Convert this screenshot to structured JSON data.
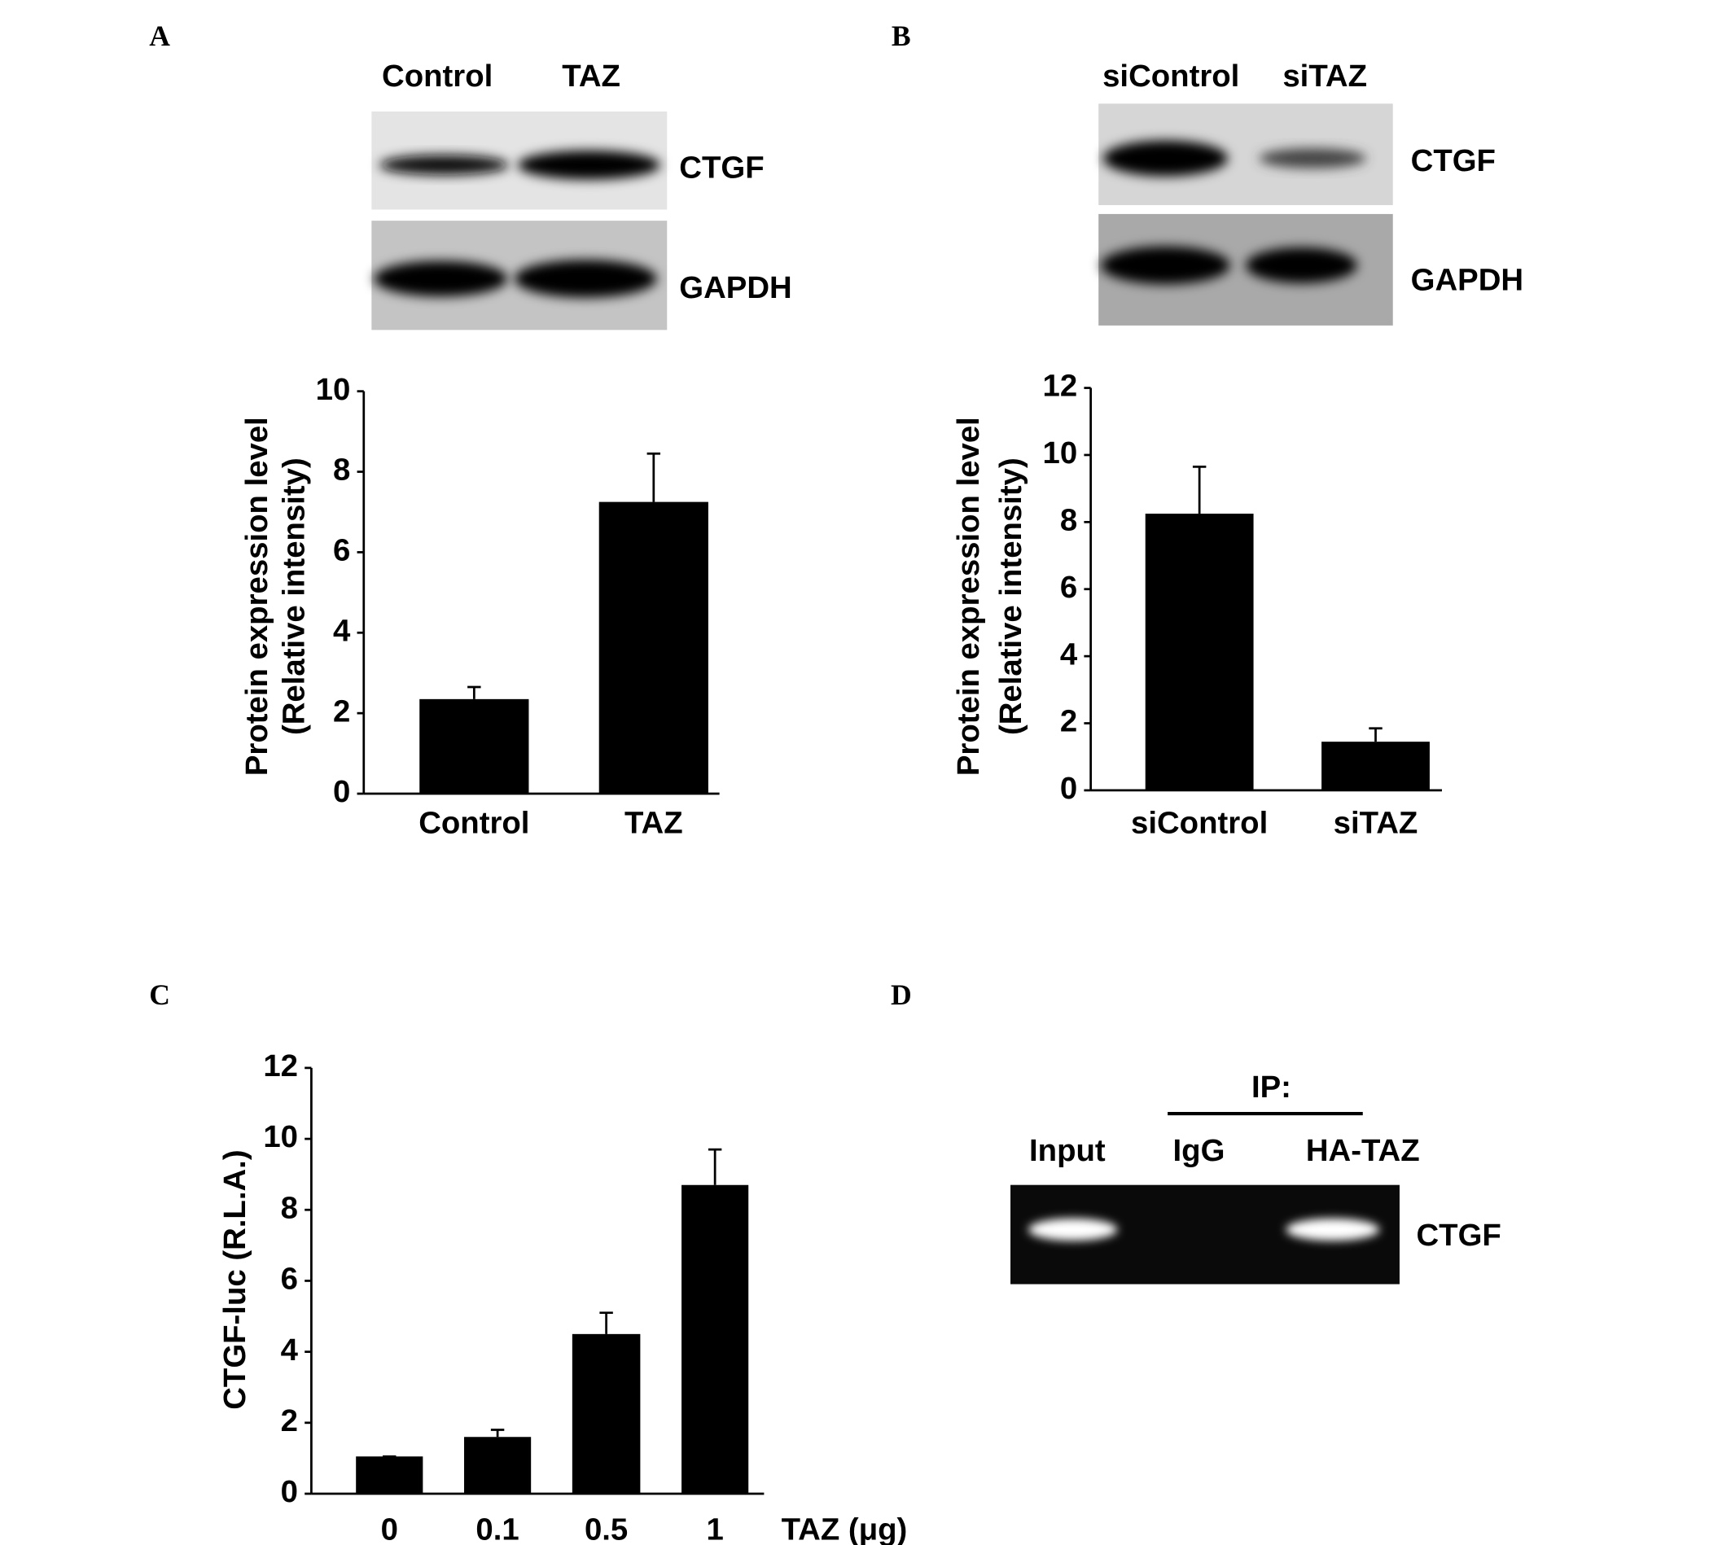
{
  "panel_labels": [
    "A",
    "B",
    "C",
    "D"
  ],
  "blot_a": {
    "lanes": [
      "Control",
      "TAZ"
    ],
    "bands": [
      "CTGF",
      "GAPDH"
    ]
  },
  "blot_b": {
    "lanes": [
      "siControl",
      "siTAZ"
    ],
    "bands": [
      "CTGF",
      "GAPDH"
    ]
  },
  "gel_d": {
    "header": "IP:",
    "lanes": [
      "Input",
      "IgG",
      "HA-TAZ"
    ],
    "band": "CTGF"
  },
  "chart_data": [
    {
      "type": "bar",
      "ylabel": [
        "Protein expression level",
        "(Relative intensity)"
      ],
      "categories": [
        "Control",
        "TAZ"
      ],
      "values": [
        2.35,
        7.25
      ],
      "errors": [
        0.3,
        1.2
      ],
      "color": "#000000",
      "ylim": [
        0,
        10
      ],
      "yticks": [
        0,
        2,
        4,
        6,
        8,
        10
      ]
    },
    {
      "type": "bar",
      "ylabel": [
        "Protein expression level",
        "(Relative intensity)"
      ],
      "categories": [
        "siControl",
        "siTAZ"
      ],
      "values": [
        8.25,
        1.45
      ],
      "errors": [
        1.4,
        0.4
      ],
      "color": "#000000",
      "ylim": [
        0,
        12
      ],
      "yticks": [
        0,
        2,
        4,
        6,
        8,
        10,
        12
      ]
    },
    {
      "type": "bar",
      "ylabel": [
        "CTGF-luc (R.L.A.)"
      ],
      "xlabel": "TAZ (μg)",
      "categories": [
        "0",
        "0.1",
        "0.5",
        "1"
      ],
      "values": [
        1.05,
        1.6,
        4.5,
        8.7
      ],
      "errors": [
        0,
        0.2,
        0.6,
        1.0
      ],
      "color": "#000000",
      "ylim": [
        0,
        12
      ],
      "yticks": [
        0,
        2,
        4,
        6,
        8,
        10,
        12
      ]
    }
  ]
}
